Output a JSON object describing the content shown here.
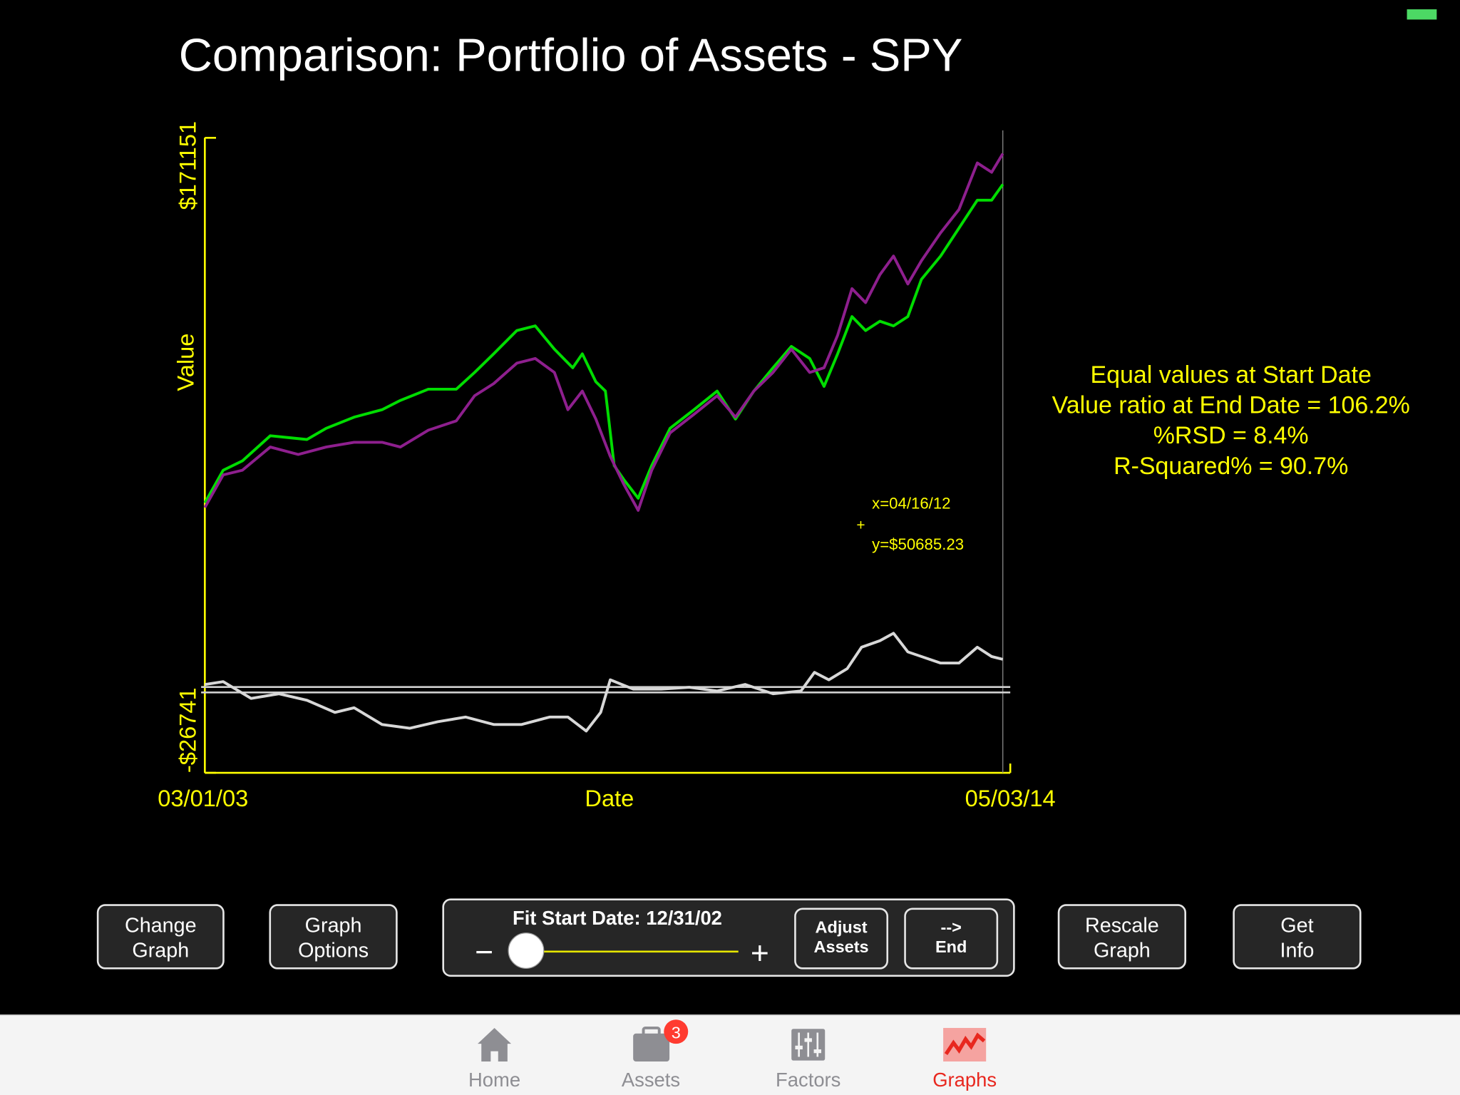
{
  "title": "Comparison: Portfolio of Assets - SPY",
  "chart_data": {
    "type": "line",
    "x_label": "Date",
    "y_label": "Value",
    "axis_color": "#ffff00",
    "xlim": [
      0,
      100
    ],
    "xticks": [
      {
        "value": 0,
        "label": "03/01/03"
      },
      {
        "value": 100,
        "label": "05/03/14"
      }
    ],
    "ylim": [
      -26741,
      171151
    ],
    "yticks": [
      {
        "value": -26741,
        "label": "-$26741"
      },
      {
        "value": 171151,
        "label": "$171151"
      }
    ],
    "series": [
      {
        "color": "#00dd00",
        "x": [
          0,
          2.3,
          4.7,
          8.2,
          10.5,
          12.8,
          15.2,
          18.7,
          22.2,
          24.5,
          28.0,
          31.5,
          33.8,
          36.2,
          39.1,
          41.4,
          43.8,
          46.1,
          47.3,
          49.0,
          50.2,
          51.3,
          52.5,
          54.3,
          56.0,
          58.3,
          61.3,
          64.2,
          66.5,
          68.8,
          71.2,
          73.5,
          75.8,
          77.6,
          79.3,
          81.1,
          82.8,
          84.6,
          86.3,
          88.1,
          89.8,
          92.2,
          94.5,
          96.8,
          98.6,
          100
        ],
        "values": [
          57400,
          67550,
          70450,
          78290,
          77710,
          77130,
          80610,
          84090,
          86410,
          89320,
          92800,
          92800,
          98020,
          103830,
          111080,
          112530,
          105280,
          99470,
          103830,
          95120,
          92220,
          69000,
          64650,
          58840,
          69000,
          80610,
          86410,
          92220,
          83510,
          92220,
          99470,
          106150,
          102370,
          93670,
          103830,
          115430,
          111080,
          113980,
          112530,
          115430,
          127040,
          134300,
          143000,
          151710,
          151710,
          156640
        ]
      },
      {
        "color": "#8e1f8e",
        "x": [
          0,
          2.3,
          4.7,
          8.2,
          11.7,
          15.2,
          18.7,
          22.2,
          24.5,
          28.0,
          31.5,
          33.8,
          36.2,
          39.1,
          41.4,
          43.8,
          45.5,
          47.3,
          49.0,
          50.8,
          52.5,
          54.3,
          56.0,
          58.3,
          61.3,
          64.2,
          66.5,
          68.8,
          71.2,
          73.5,
          75.8,
          77.6,
          79.3,
          81.1,
          82.8,
          84.6,
          86.3,
          88.1,
          89.8,
          92.2,
          94.5,
          96.8,
          98.6,
          100
        ],
        "values": [
          55940,
          66100,
          67550,
          74800,
          72480,
          74800,
          76260,
          76260,
          74800,
          80030,
          82930,
          90770,
          94540,
          100920,
          102370,
          98020,
          86410,
          92220,
          83510,
          71900,
          63200,
          55070,
          67550,
          79160,
          84960,
          90770,
          84090,
          92220,
          98020,
          105280,
          98020,
          99470,
          109630,
          124140,
          119790,
          128490,
          134300,
          125590,
          132840,
          141550,
          148810,
          163320,
          160410,
          166220
        ]
      },
      {
        "color": "#d8d8d8",
        "x": [
          0,
          2.3,
          5.8,
          9.3,
          12.8,
          16.3,
          18.7,
          22.2,
          25.7,
          29.2,
          32.7,
          36.2,
          39.7,
          43.2,
          45.5,
          47.8,
          49.6,
          50.8,
          53.7,
          57.2,
          60.7,
          64.2,
          67.7,
          71.2,
          74.7,
          76.4,
          78.2,
          80.5,
          82.3,
          84.6,
          86.3,
          88.1,
          89.8,
          92.2,
          94.5,
          96.8,
          98.6,
          100
        ],
        "values": [
          800,
          1670,
          -3550,
          -2100,
          -4130,
          -7900,
          -6450,
          -11680,
          -12840,
          -10800,
          -9350,
          -11680,
          -11680,
          -9350,
          -9350,
          -13710,
          -7900,
          2250,
          -650,
          -650,
          -70,
          -1230,
          800,
          -2100,
          -1230,
          4580,
          2250,
          5740,
          12410,
          14440,
          16760,
          10960,
          9510,
          7480,
          7480,
          12410,
          9510,
          8640
        ]
      }
    ],
    "reference_lines": [
      0,
      -1700
    ],
    "cursor": {
      "x": 82.2,
      "y": 50685.23,
      "marker": "+",
      "x_label": "x=04/16/12",
      "y_label": "y=$50685.23"
    }
  },
  "stats": [
    "Equal values at Start Date",
    "Value ratio at End Date = 106.2%",
    "%RSD = 8.4%",
    "R-Squared% = 90.7%"
  ],
  "controls": {
    "buttons": [
      {
        "lines": [
          "Change",
          "Graph"
        ]
      },
      {
        "lines": [
          "Graph",
          "Options"
        ]
      },
      {
        "lines": [
          "Adjust",
          "Assets"
        ]
      },
      {
        "lines": [
          "-->",
          "End"
        ]
      },
      {
        "lines": [
          "Rescale",
          "Graph"
        ]
      },
      {
        "lines": [
          "Get",
          "Info"
        ]
      }
    ],
    "slider": {
      "label": "Fit Start Date: 12/31/02",
      "minus": "−",
      "plus": "+"
    }
  },
  "tab_bar": {
    "items": [
      {
        "label": "Home"
      },
      {
        "label": "Assets",
        "badge": 3
      },
      {
        "label": "Factors"
      },
      {
        "label": "Graphs"
      }
    ],
    "active": 3
  }
}
